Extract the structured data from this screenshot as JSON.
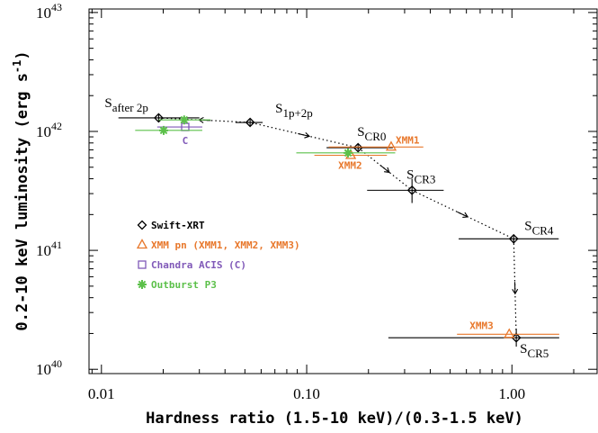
{
  "chart_data": {
    "type": "scatter",
    "xlabel": "Hardness ratio (1.5-10 keV)/(0.3-1.5 keV)",
    "ylabel": "0.2-10 keV luminosity (erg s",
    "ylabel_sup": "-1",
    "ylabel_end": ")",
    "xscale": "log",
    "yscale": "log",
    "xlim": [
      0.0087,
      2.6
    ],
    "ylim": [
      9.2e+39,
      1.07e+43
    ],
    "xticks": [
      {
        "value": 0.01,
        "label": "0.01"
      },
      {
        "value": 0.1,
        "label": "0.10"
      },
      {
        "value": 1,
        "label": "1.00"
      }
    ],
    "yticks": [
      {
        "value": 1e+40,
        "label": "10",
        "sup": "40"
      },
      {
        "value": 1e+41,
        "label": "10",
        "sup": "41"
      },
      {
        "value": 1e+42,
        "label": "10",
        "sup": "42"
      },
      {
        "value": 1e+43,
        "label": "10",
        "sup": "43"
      }
    ],
    "legend": "upper left",
    "series": [
      {
        "name": "Swift-XRT",
        "color": "#000000",
        "marker": "diamond",
        "connect": true,
        "x": [
          0.019,
          0.053,
          0.178,
          0.326,
          1.02,
          1.05
        ],
        "values": [
          1.3e+42,
          1.19e+42,
          7.3e+41,
          3.2e+41,
          1.25e+41,
          1.84e+40
        ],
        "x_min": [
          0.0121,
          0.045,
          0.125,
          0.197,
          0.55,
          0.25
        ],
        "x_max": [
          0.03,
          0.061,
          0.263,
          0.465,
          1.69,
          1.7
        ],
        "y_min": [
          1.22e+42,
          1.12e+42,
          6.9e+41,
          2.5e+41,
          1.15e+41,
          1.55e+40
        ],
        "y_max": [
          1.38e+42,
          1.26e+42,
          7.8e+41,
          4e+41,
          1.35e+41,
          2.2e+40
        ],
        "labels": [
          {
            "text": "S",
            "sub": "after 2p"
          },
          {
            "text": "S",
            "sub": "1p+2p"
          },
          {
            "text": "S",
            "sub": "CR0"
          },
          {
            "text": "S",
            "sub": "CR3"
          },
          {
            "text": "S",
            "sub": "CR4"
          },
          {
            "text": "S",
            "sub": "CR5"
          }
        ]
      },
      {
        "name": "XMM pn (XMM1, XMM2, XMM3)",
        "color": "#e8782c",
        "marker": "triangle",
        "x": [
          0.258,
          0.164,
          0.97
        ],
        "values": [
          7.4e+41,
          6.3e+41,
          1.97e+40
        ],
        "x_min": [
          0.128,
          0.109,
          0.54
        ],
        "x_max": [
          0.37,
          0.246,
          1.7
        ],
        "labels": [
          {
            "text": "XMM1"
          },
          {
            "text": "XMM2"
          },
          {
            "text": "XMM3"
          }
        ]
      },
      {
        "name": "Chandra ACIS (C)",
        "color": "#8059b8",
        "marker": "square",
        "x": [
          0.0256
        ],
        "values": [
          1.09e+42
        ],
        "x_min": [
          0.0187
        ],
        "x_max": [
          0.031
        ],
        "labels": [
          {
            "text": "C"
          }
        ]
      },
      {
        "name": "Outburst P3",
        "color": "#5cc04a",
        "marker": "star",
        "x": [
          0.0201,
          0.0253,
          0.159
        ],
        "values": [
          1.02e+42,
          1.25e+42,
          6.6e+41
        ],
        "x_min": [
          0.0146,
          0.019,
          0.089
        ],
        "x_max": [
          0.031,
          0.034,
          0.27
        ]
      }
    ]
  }
}
